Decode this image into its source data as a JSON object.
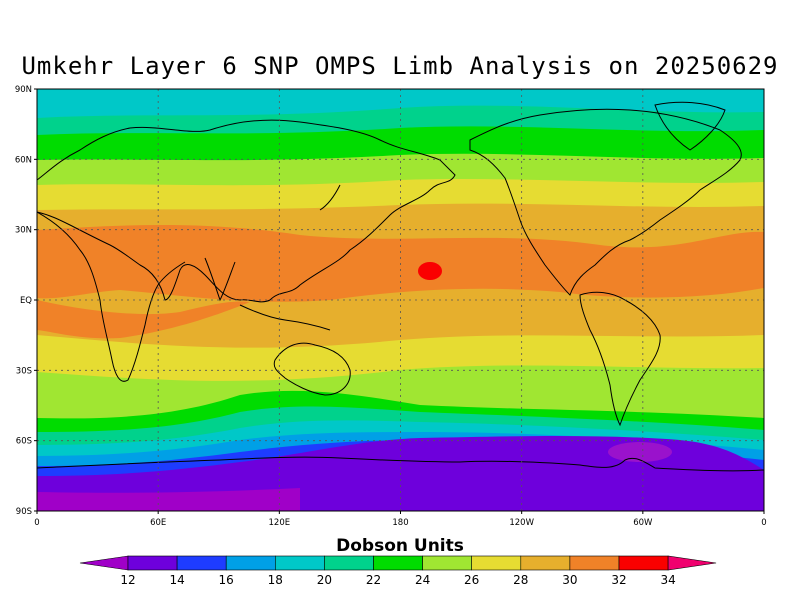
{
  "title": "Umkehr Layer 6 SNP OMPS Limb Analysis on 20250629",
  "map": {
    "lat_labels": [
      "90N",
      "60N",
      "30N",
      "EQ",
      "30S",
      "60S",
      "90S"
    ],
    "lon_labels": [
      "0",
      "60E",
      "120E",
      "180",
      "120W",
      "60W",
      "0"
    ]
  },
  "colorbar": {
    "label": "Dobson Units",
    "ticks": [
      "12",
      "14",
      "16",
      "18",
      "20",
      "22",
      "24",
      "26",
      "28",
      "30",
      "32",
      "34"
    ],
    "colors": [
      "#a000c8",
      "#6e00dc",
      "#1e3cff",
      "#00a0e6",
      "#00c8c8",
      "#00d28c",
      "#00dc00",
      "#a0e632",
      "#e6dc32",
      "#e6af2d",
      "#f08228",
      "#fa0000",
      "#f0006e"
    ]
  },
  "chart_data": {
    "type": "heatmap",
    "title": "Umkehr Layer 6 SNP OMPS Limb Analysis on 20250629",
    "units": "Dobson Units",
    "levels": [
      12,
      14,
      16,
      18,
      20,
      22,
      24,
      26,
      28,
      30,
      32,
      34
    ],
    "x_range": [
      0,
      360
    ],
    "y_range": [
      -90,
      90
    ],
    "zonal_profile": [
      {
        "lat": 90,
        "du": 21
      },
      {
        "lat": 80,
        "du": 21
      },
      {
        "lat": 70,
        "du": 22
      },
      {
        "lat": 60,
        "du": 24
      },
      {
        "lat": 50,
        "du": 26
      },
      {
        "lat": 40,
        "du": 28
      },
      {
        "lat": 30,
        "du": 29
      },
      {
        "lat": 20,
        "du": 30
      },
      {
        "lat": 10,
        "du": 30
      },
      {
        "lat": 0,
        "du": 29
      },
      {
        "lat": -10,
        "du": 29
      },
      {
        "lat": -20,
        "du": 28
      },
      {
        "lat": -30,
        "du": 26
      },
      {
        "lat": -40,
        "du": 25
      },
      {
        "lat": -50,
        "du": 22
      },
      {
        "lat": -60,
        "du": 16
      },
      {
        "lat": -70,
        "du": 13
      },
      {
        "lat": -80,
        "du": 13
      },
      {
        "lat": -90,
        "du": 13
      }
    ]
  }
}
